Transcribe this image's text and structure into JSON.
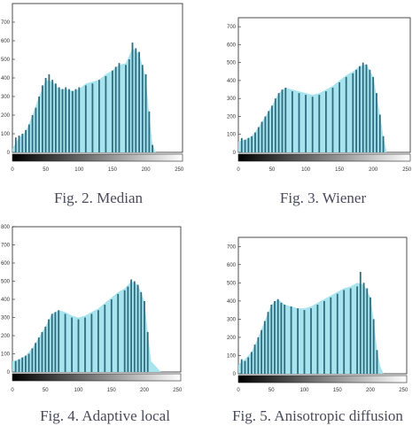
{
  "chart_data": [
    {
      "type": "bar",
      "caption": "Fig.  2. Median",
      "xlim": [
        0,
        255
      ],
      "ylim": [
        0,
        800
      ],
      "xticks": [
        0,
        50,
        100,
        150,
        200,
        250
      ],
      "yticks": [
        0,
        100,
        200,
        300,
        400,
        500,
        600,
        700
      ],
      "colors": {
        "bar": "#2e6d80",
        "fill": "#a8e4ee",
        "axis": "#222222"
      },
      "bars": [
        {
          "x": 5,
          "y": 80
        },
        {
          "x": 10,
          "y": 90
        },
        {
          "x": 15,
          "y": 100
        },
        {
          "x": 20,
          "y": 120
        },
        {
          "x": 25,
          "y": 150
        },
        {
          "x": 30,
          "y": 200
        },
        {
          "x": 35,
          "y": 240
        },
        {
          "x": 40,
          "y": 300
        },
        {
          "x": 45,
          "y": 360
        },
        {
          "x": 50,
          "y": 400
        },
        {
          "x": 55,
          "y": 420
        },
        {
          "x": 60,
          "y": 390
        },
        {
          "x": 65,
          "y": 370
        },
        {
          "x": 70,
          "y": 350
        },
        {
          "x": 75,
          "y": 340
        },
        {
          "x": 80,
          "y": 350
        },
        {
          "x": 85,
          "y": 340
        },
        {
          "x": 90,
          "y": 330
        },
        {
          "x": 95,
          "y": 340
        },
        {
          "x": 100,
          "y": 350
        },
        {
          "x": 110,
          "y": 360
        },
        {
          "x": 120,
          "y": 370
        },
        {
          "x": 130,
          "y": 390
        },
        {
          "x": 140,
          "y": 410
        },
        {
          "x": 150,
          "y": 440
        },
        {
          "x": 155,
          "y": 460
        },
        {
          "x": 160,
          "y": 480
        },
        {
          "x": 170,
          "y": 470
        },
        {
          "x": 175,
          "y": 500
        },
        {
          "x": 180,
          "y": 590
        },
        {
          "x": 185,
          "y": 560
        },
        {
          "x": 190,
          "y": 540
        },
        {
          "x": 195,
          "y": 470
        },
        {
          "x": 200,
          "y": 420
        },
        {
          "x": 205,
          "y": 220
        },
        {
          "x": 210,
          "y": 40
        }
      ],
      "fill_curve": [
        [
          0,
          20
        ],
        [
          10,
          80
        ],
        [
          20,
          110
        ],
        [
          30,
          200
        ],
        [
          40,
          300
        ],
        [
          50,
          390
        ],
        [
          60,
          380
        ],
        [
          70,
          340
        ],
        [
          80,
          340
        ],
        [
          90,
          330
        ],
        [
          100,
          340
        ],
        [
          110,
          370
        ],
        [
          120,
          380
        ],
        [
          130,
          390
        ],
        [
          140,
          420
        ],
        [
          150,
          440
        ],
        [
          160,
          470
        ],
        [
          170,
          480
        ],
        [
          180,
          560
        ],
        [
          190,
          530
        ],
        [
          200,
          400
        ],
        [
          205,
          200
        ],
        [
          210,
          40
        ],
        [
          215,
          0
        ]
      ]
    },
    {
      "type": "bar",
      "caption": "Fig. 3. Wiener",
      "xlim": [
        0,
        255
      ],
      "ylim": [
        0,
        750
      ],
      "xticks": [
        0,
        50,
        100,
        150,
        200,
        250
      ],
      "yticks": [
        0,
        100,
        200,
        300,
        400,
        500,
        600,
        700
      ],
      "colors": {
        "bar": "#2e6d80",
        "fill": "#a8e4ee",
        "axis": "#222222"
      },
      "bars": [
        {
          "x": 5,
          "y": 80
        },
        {
          "x": 10,
          "y": 70
        },
        {
          "x": 15,
          "y": 80
        },
        {
          "x": 20,
          "y": 90
        },
        {
          "x": 25,
          "y": 110
        },
        {
          "x": 30,
          "y": 140
        },
        {
          "x": 35,
          "y": 170
        },
        {
          "x": 40,
          "y": 200
        },
        {
          "x": 45,
          "y": 230
        },
        {
          "x": 50,
          "y": 260
        },
        {
          "x": 55,
          "y": 300
        },
        {
          "x": 60,
          "y": 330
        },
        {
          "x": 65,
          "y": 350
        },
        {
          "x": 70,
          "y": 360
        },
        {
          "x": 80,
          "y": 340
        },
        {
          "x": 90,
          "y": 330
        },
        {
          "x": 100,
          "y": 320
        },
        {
          "x": 110,
          "y": 310
        },
        {
          "x": 120,
          "y": 320
        },
        {
          "x": 130,
          "y": 340
        },
        {
          "x": 140,
          "y": 360
        },
        {
          "x": 150,
          "y": 390
        },
        {
          "x": 160,
          "y": 420
        },
        {
          "x": 170,
          "y": 440
        },
        {
          "x": 175,
          "y": 460
        },
        {
          "x": 180,
          "y": 480
        },
        {
          "x": 185,
          "y": 500
        },
        {
          "x": 190,
          "y": 490
        },
        {
          "x": 195,
          "y": 460
        },
        {
          "x": 200,
          "y": 420
        },
        {
          "x": 205,
          "y": 330
        },
        {
          "x": 210,
          "y": 210
        },
        {
          "x": 215,
          "y": 90
        }
      ],
      "fill_curve": [
        [
          0,
          60
        ],
        [
          10,
          70
        ],
        [
          20,
          90
        ],
        [
          30,
          140
        ],
        [
          40,
          200
        ],
        [
          50,
          260
        ],
        [
          60,
          330
        ],
        [
          70,
          360
        ],
        [
          80,
          350
        ],
        [
          90,
          340
        ],
        [
          100,
          330
        ],
        [
          110,
          320
        ],
        [
          120,
          330
        ],
        [
          130,
          350
        ],
        [
          140,
          370
        ],
        [
          150,
          400
        ],
        [
          160,
          430
        ],
        [
          170,
          450
        ],
        [
          180,
          480
        ],
        [
          190,
          490
        ],
        [
          200,
          420
        ],
        [
          210,
          210
        ],
        [
          215,
          90
        ],
        [
          220,
          0
        ]
      ]
    },
    {
      "type": "bar",
      "caption": "Fig. 4. Adaptive local",
      "xlim": [
        0,
        255
      ],
      "ylim": [
        0,
        800
      ],
      "xticks": [
        0,
        50,
        100,
        150,
        200,
        250
      ],
      "yticks": [
        0,
        100,
        200,
        300,
        400,
        500,
        600,
        700,
        800
      ],
      "colors": {
        "bar": "#2e6d80",
        "fill": "#a8e4ee",
        "axis": "#222222"
      },
      "bars": [
        {
          "x": 5,
          "y": 60
        },
        {
          "x": 10,
          "y": 70
        },
        {
          "x": 15,
          "y": 80
        },
        {
          "x": 20,
          "y": 90
        },
        {
          "x": 25,
          "y": 100
        },
        {
          "x": 30,
          "y": 130
        },
        {
          "x": 35,
          "y": 160
        },
        {
          "x": 40,
          "y": 190
        },
        {
          "x": 45,
          "y": 220
        },
        {
          "x": 50,
          "y": 250
        },
        {
          "x": 55,
          "y": 290
        },
        {
          "x": 60,
          "y": 320
        },
        {
          "x": 65,
          "y": 330
        },
        {
          "x": 70,
          "y": 340
        },
        {
          "x": 80,
          "y": 320
        },
        {
          "x": 90,
          "y": 300
        },
        {
          "x": 100,
          "y": 290
        },
        {
          "x": 110,
          "y": 300
        },
        {
          "x": 120,
          "y": 320
        },
        {
          "x": 130,
          "y": 340
        },
        {
          "x": 140,
          "y": 370
        },
        {
          "x": 150,
          "y": 400
        },
        {
          "x": 160,
          "y": 430
        },
        {
          "x": 170,
          "y": 450
        },
        {
          "x": 175,
          "y": 470
        },
        {
          "x": 180,
          "y": 510
        },
        {
          "x": 185,
          "y": 500
        },
        {
          "x": 190,
          "y": 480
        },
        {
          "x": 195,
          "y": 440
        },
        {
          "x": 200,
          "y": 390
        },
        {
          "x": 205,
          "y": 220
        }
      ],
      "fill_curve": [
        [
          0,
          60
        ],
        [
          10,
          70
        ],
        [
          20,
          90
        ],
        [
          30,
          130
        ],
        [
          40,
          190
        ],
        [
          50,
          250
        ],
        [
          60,
          320
        ],
        [
          70,
          340
        ],
        [
          80,
          330
        ],
        [
          90,
          310
        ],
        [
          100,
          300
        ],
        [
          110,
          310
        ],
        [
          120,
          330
        ],
        [
          130,
          350
        ],
        [
          140,
          380
        ],
        [
          150,
          410
        ],
        [
          160,
          440
        ],
        [
          170,
          460
        ],
        [
          180,
          500
        ],
        [
          190,
          480
        ],
        [
          200,
          390
        ],
        [
          205,
          220
        ],
        [
          210,
          60
        ],
        [
          220,
          20
        ],
        [
          225,
          0
        ]
      ]
    },
    {
      "type": "bar",
      "caption": "Fig. 5. Anisotropic diffusion",
      "xlim": [
        0,
        255
      ],
      "ylim": [
        0,
        750
      ],
      "xticks": [
        0,
        50,
        100,
        150,
        200,
        250
      ],
      "yticks": [
        0,
        100,
        200,
        300,
        400,
        500,
        600,
        700
      ],
      "colors": {
        "bar": "#2e6d80",
        "fill": "#a8e4ee",
        "axis": "#222222"
      },
      "bars": [
        {
          "x": 5,
          "y": 80
        },
        {
          "x": 10,
          "y": 70
        },
        {
          "x": 15,
          "y": 90
        },
        {
          "x": 20,
          "y": 120
        },
        {
          "x": 25,
          "y": 160
        },
        {
          "x": 30,
          "y": 200
        },
        {
          "x": 35,
          "y": 240
        },
        {
          "x": 40,
          "y": 290
        },
        {
          "x": 45,
          "y": 340
        },
        {
          "x": 50,
          "y": 380
        },
        {
          "x": 55,
          "y": 400
        },
        {
          "x": 60,
          "y": 410
        },
        {
          "x": 65,
          "y": 390
        },
        {
          "x": 70,
          "y": 380
        },
        {
          "x": 80,
          "y": 370
        },
        {
          "x": 90,
          "y": 360
        },
        {
          "x": 100,
          "y": 350
        },
        {
          "x": 110,
          "y": 360
        },
        {
          "x": 120,
          "y": 380
        },
        {
          "x": 130,
          "y": 400
        },
        {
          "x": 140,
          "y": 420
        },
        {
          "x": 150,
          "y": 440
        },
        {
          "x": 160,
          "y": 460
        },
        {
          "x": 170,
          "y": 470
        },
        {
          "x": 180,
          "y": 480
        },
        {
          "x": 185,
          "y": 560
        },
        {
          "x": 190,
          "y": 500
        },
        {
          "x": 195,
          "y": 470
        },
        {
          "x": 200,
          "y": 420
        },
        {
          "x": 205,
          "y": 300
        },
        {
          "x": 210,
          "y": 130
        }
      ],
      "fill_curve": [
        [
          0,
          50
        ],
        [
          10,
          80
        ],
        [
          20,
          120
        ],
        [
          30,
          200
        ],
        [
          40,
          290
        ],
        [
          50,
          380
        ],
        [
          60,
          410
        ],
        [
          70,
          380
        ],
        [
          80,
          370
        ],
        [
          90,
          360
        ],
        [
          100,
          360
        ],
        [
          110,
          370
        ],
        [
          120,
          390
        ],
        [
          130,
          410
        ],
        [
          140,
          430
        ],
        [
          150,
          450
        ],
        [
          160,
          470
        ],
        [
          170,
          480
        ],
        [
          180,
          500
        ],
        [
          190,
          490
        ],
        [
          200,
          420
        ],
        [
          205,
          300
        ],
        [
          210,
          130
        ],
        [
          215,
          40
        ],
        [
          220,
          0
        ]
      ]
    }
  ]
}
